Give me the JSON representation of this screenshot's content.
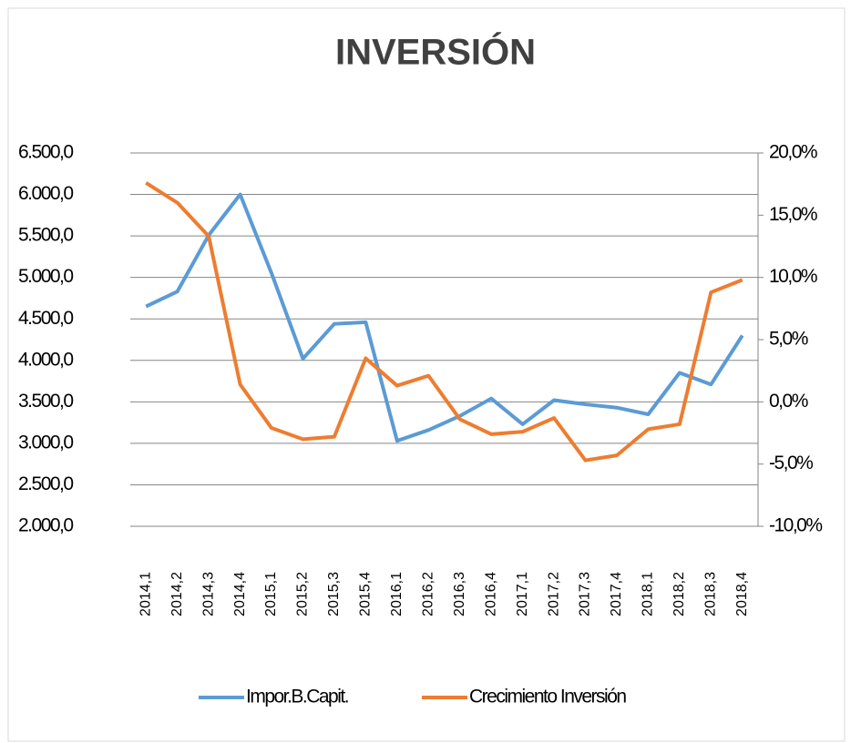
{
  "chart_data": {
    "type": "line",
    "title": "INVERSIÓN",
    "categories": [
      "2014,1",
      "2014,2",
      "2014,3",
      "2014,4",
      "2015,1",
      "2015,2",
      "2015,3",
      "2015,4",
      "2016,1",
      "2016,2",
      "2016,3",
      "2016,4",
      "2017,1",
      "2017,2",
      "2017,3",
      "2017,4",
      "2018,1",
      "2018,2",
      "2018,3",
      "2018,4"
    ],
    "series": [
      {
        "name": "Impor.B.Capit.",
        "color": "#5b9bd5",
        "values": [
          4650,
          4830,
          5510,
          6000,
          5050,
          4020,
          4440,
          4460,
          3030,
          3160,
          3330,
          3540,
          3230,
          3520,
          3470,
          3430,
          3350,
          3850,
          3710,
          4300
        ]
      },
      {
        "name": "Crecimiento Inversión",
        "color": "#ed7d31",
        "axis": "y2",
        "values": [
          17.6,
          16.0,
          13.3,
          1.4,
          -2.1,
          -3.0,
          -2.8,
          3.5,
          1.3,
          2.1,
          -1.4,
          -2.6,
          -2.4,
          -1.3,
          -4.7,
          -4.3,
          -2.2,
          -1.8,
          8.8,
          9.8
        ]
      }
    ],
    "ylim": [
      2000,
      6500
    ],
    "yticks": [
      {
        "value": 2000,
        "label": "2.000,0"
      },
      {
        "value": 2500,
        "label": "2.500,0"
      },
      {
        "value": 3000,
        "label": "3.000,0"
      },
      {
        "value": 3500,
        "label": "3.500,0"
      },
      {
        "value": 4000,
        "label": "4.000,0"
      },
      {
        "value": 4500,
        "label": "4.500,0"
      },
      {
        "value": 5000,
        "label": "5.000,0"
      },
      {
        "value": 5500,
        "label": "5.500,0"
      },
      {
        "value": 6000,
        "label": "6.000,0"
      },
      {
        "value": 6500,
        "label": "6.500,0"
      }
    ],
    "y2lim": [
      -10,
      20
    ],
    "y2ticks": [
      {
        "value": -10,
        "label": "-10,0%"
      },
      {
        "value": -5,
        "label": "-5,0%"
      },
      {
        "value": 0,
        "label": "0,0%"
      },
      {
        "value": 5,
        "label": "5,0%"
      },
      {
        "value": 10,
        "label": "10,0%"
      },
      {
        "value": 15,
        "label": "15,0%"
      },
      {
        "value": 20,
        "label": "20,0%"
      }
    ],
    "grid": true,
    "legend": "bottom"
  }
}
